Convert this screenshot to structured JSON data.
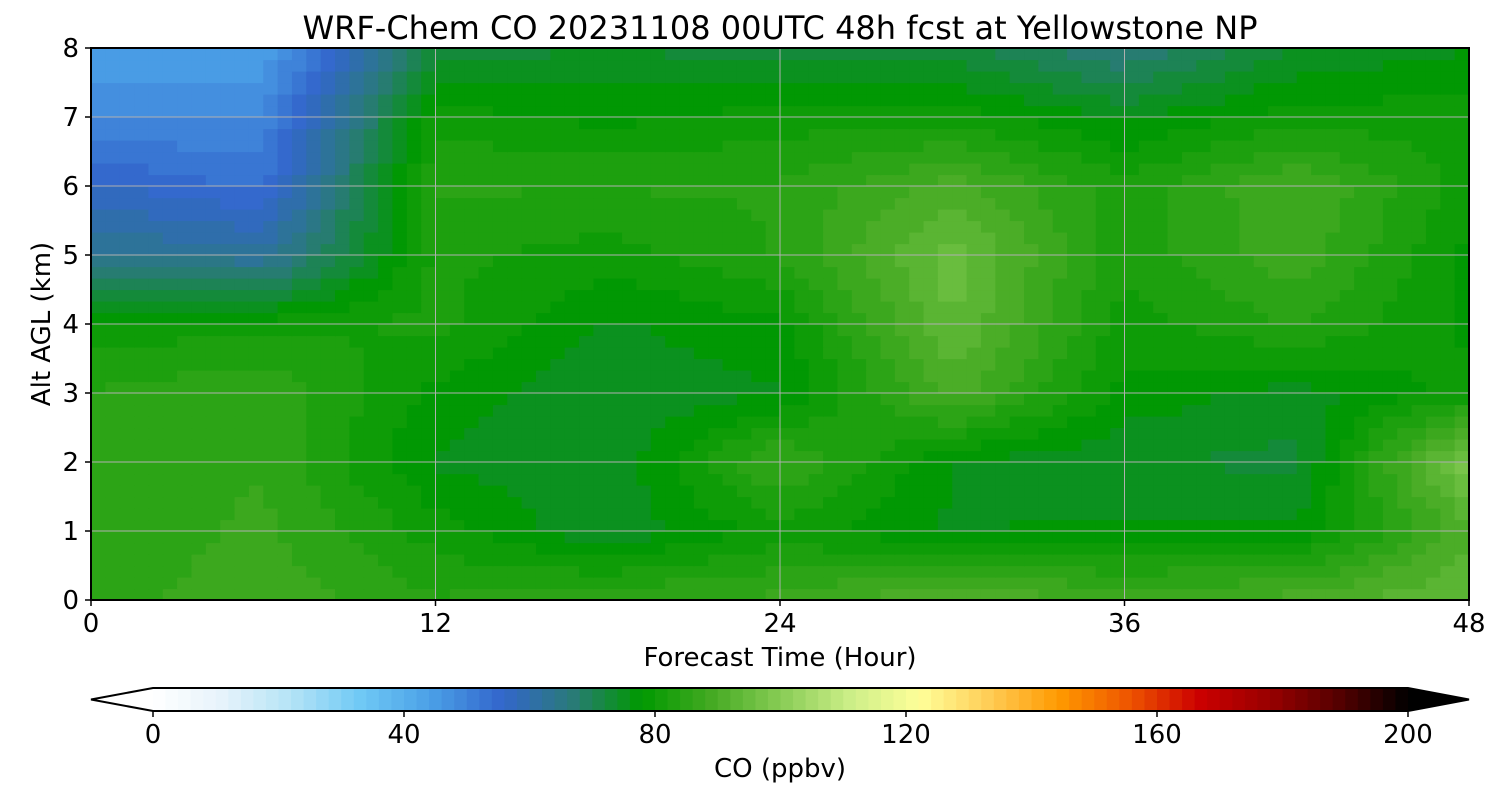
{
  "chart_data": {
    "type": "heatmap",
    "title": "WRF-Chem CO  20231108 00UTC 48h fcst at Yellowstone NP",
    "xlabel": "Forecast Time (Hour)",
    "ylabel": "Alt AGL (km)",
    "xlim": [
      0,
      48
    ],
    "ylim": [
      0,
      8
    ],
    "x_ticks": [
      "0",
      "12",
      "24",
      "36",
      "48"
    ],
    "y_ticks": [
      "0",
      "1",
      "2",
      "3",
      "4",
      "5",
      "6",
      "7",
      "8"
    ],
    "grid": true,
    "x": [
      0,
      6,
      12,
      18,
      24,
      30,
      36,
      42,
      48
    ],
    "y": [
      0,
      1,
      2,
      3,
      4,
      5,
      6,
      7,
      8
    ],
    "z": [
      [
        85,
        88,
        84,
        86,
        87,
        92,
        88,
        90,
        94
      ],
      [
        84,
        87,
        80,
        74,
        80,
        76,
        77,
        77,
        90
      ],
      [
        84,
        86,
        76,
        74,
        87,
        76,
        74,
        73,
        98
      ],
      [
        84,
        86,
        78,
        74,
        76,
        90,
        78,
        75,
        80
      ],
      [
        80,
        80,
        82,
        76,
        78,
        94,
        80,
        84,
        78
      ],
      [
        64,
        62,
        82,
        80,
        84,
        95,
        82,
        88,
        78
      ],
      [
        57,
        53,
        84,
        84,
        84,
        90,
        82,
        89,
        80
      ],
      [
        48,
        49,
        80,
        78,
        80,
        80,
        76,
        80,
        80
      ],
      [
        45,
        44,
        72,
        74,
        72,
        72,
        66,
        74,
        76
      ]
    ],
    "colorbar": {
      "label": "CO  (ppbv)",
      "range": [
        0,
        200
      ],
      "ticks": [
        "0",
        "40",
        "80",
        "120",
        "160",
        "200"
      ],
      "orientation": "horizontal",
      "extend": "both",
      "colors": [
        "#ffffff",
        "#e6f3fb",
        "#b3e3f6",
        "#6ec8f5",
        "#4a9fe6",
        "#3366cc",
        "#2a7a7a",
        "#009900",
        "#44aa22",
        "#88cc55",
        "#ccee88",
        "#ffff99",
        "#ffcc55",
        "#ff9900",
        "#ee5500",
        "#cc0000",
        "#990000",
        "#550000",
        "#000000"
      ]
    }
  }
}
